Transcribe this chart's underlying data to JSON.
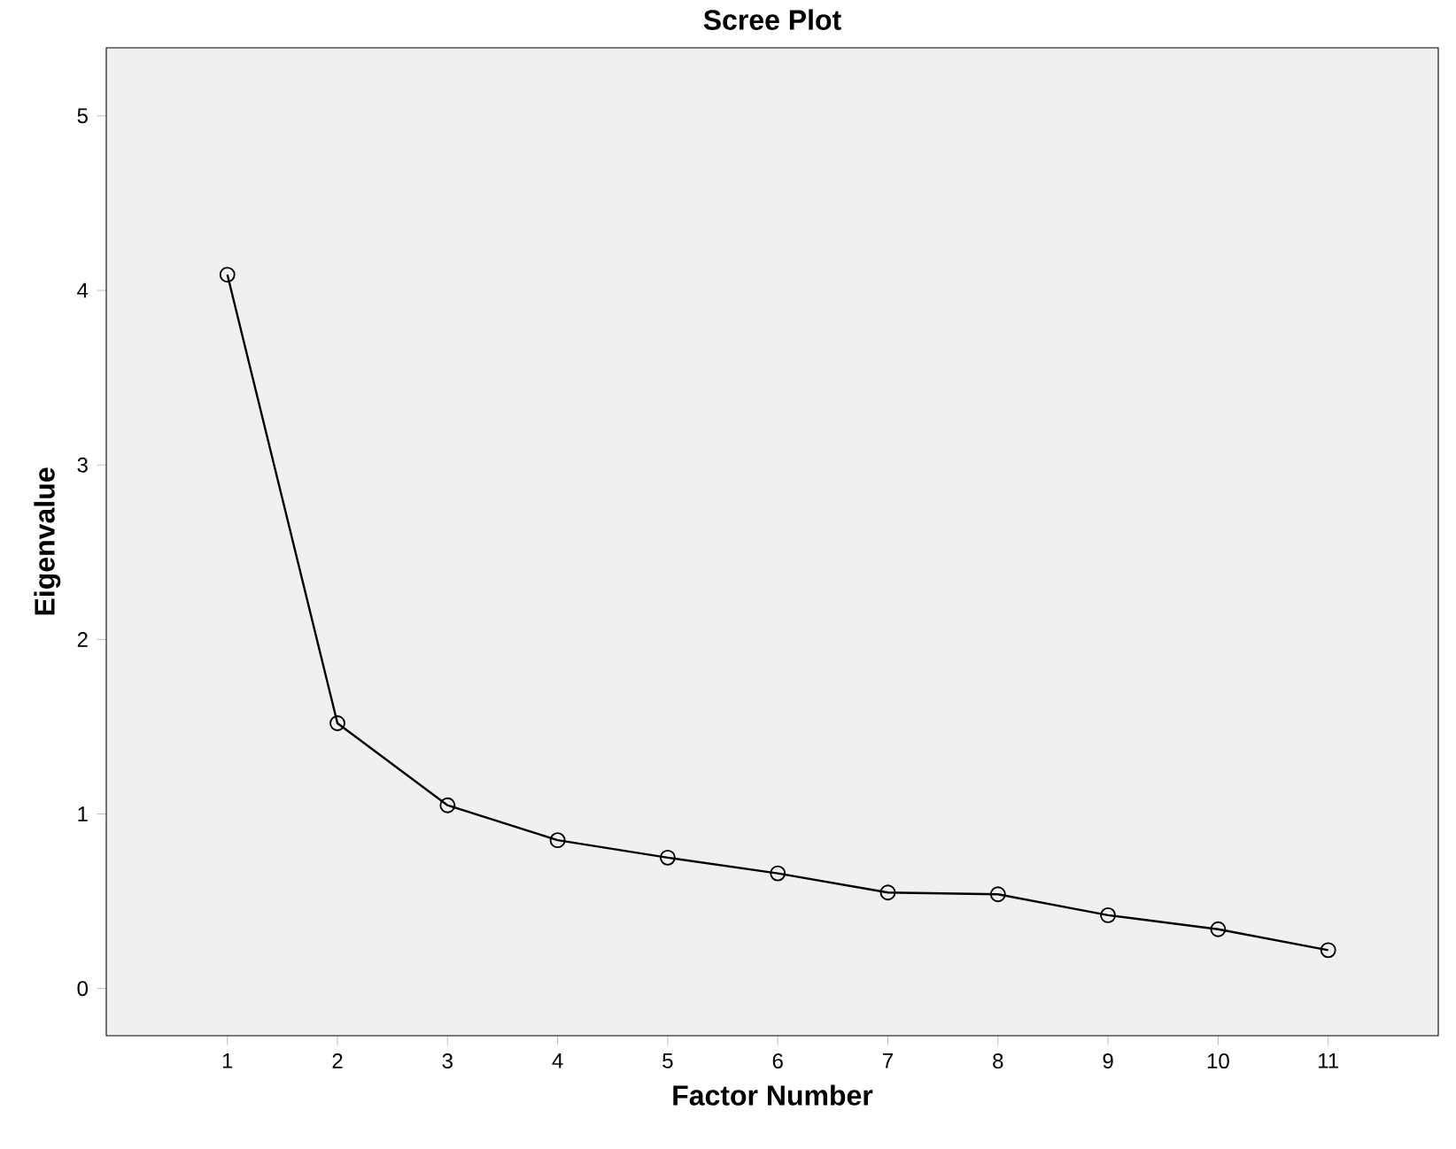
{
  "chart_data": {
    "type": "line",
    "title": "Scree Plot",
    "xlabel": "Factor Number",
    "ylabel": "Eigenvalue",
    "x": [
      1,
      2,
      3,
      4,
      5,
      6,
      7,
      8,
      9,
      10,
      11
    ],
    "values": [
      4.09,
      1.52,
      1.05,
      0.85,
      0.75,
      0.66,
      0.55,
      0.54,
      0.42,
      0.34,
      0.22
    ],
    "color": "#000000",
    "marker": "circle",
    "line_style": "solid",
    "xlim": [
      -0.1,
      12
    ],
    "ylim": [
      -0.27,
      5.39
    ],
    "xticks": [
      1,
      2,
      3,
      4,
      5,
      6,
      7,
      8,
      9,
      10,
      11
    ],
    "yticks": [
      0,
      1,
      2,
      3,
      4,
      5
    ]
  }
}
